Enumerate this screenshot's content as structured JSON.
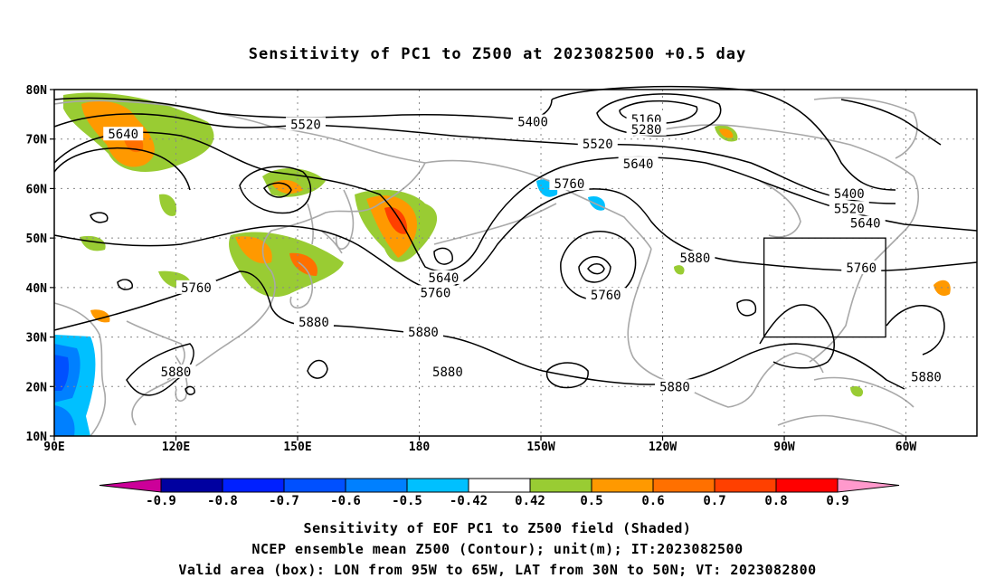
{
  "title": "Sensitivity of PC1 to Z500 at 2023082500 +0.5 day",
  "axes": {
    "lat_ticks": [
      "80N",
      "70N",
      "60N",
      "50N",
      "40N",
      "30N",
      "20N",
      "10N"
    ],
    "lon_ticks": [
      "90E",
      "120E",
      "150E",
      "180",
      "150W",
      "120W",
      "90W",
      "60W"
    ]
  },
  "contour_labels": [
    {
      "text": "5640",
      "lon": 107,
      "lat": 71
    },
    {
      "text": "5520",
      "lon": 152,
      "lat": 73
    },
    {
      "text": "5400",
      "lon": 208,
      "lat": 73.5
    },
    {
      "text": "5160",
      "lon": 236,
      "lat": 74
    },
    {
      "text": "5280",
      "lon": 236,
      "lat": 72
    },
    {
      "text": "5520",
      "lon": 224,
      "lat": 69
    },
    {
      "text": "5640",
      "lon": 234,
      "lat": 65
    },
    {
      "text": "5760",
      "lon": 217,
      "lat": 61
    },
    {
      "text": "5400",
      "lon": 286,
      "lat": 59
    },
    {
      "text": "5520",
      "lon": 286,
      "lat": 56
    },
    {
      "text": "5640",
      "lon": 290,
      "lat": 53
    },
    {
      "text": "5880",
      "lon": 248,
      "lat": 46
    },
    {
      "text": "5760",
      "lon": 289,
      "lat": 44
    },
    {
      "text": "5640",
      "lon": 186,
      "lat": 42
    },
    {
      "text": "5760",
      "lon": 184,
      "lat": 39
    },
    {
      "text": "5760",
      "lon": 125,
      "lat": 40
    },
    {
      "text": "5760",
      "lon": 226,
      "lat": 38.5
    },
    {
      "text": "5880",
      "lon": 154,
      "lat": 33
    },
    {
      "text": "5880",
      "lon": 181,
      "lat": 31
    },
    {
      "text": "5880",
      "lon": 187,
      "lat": 23
    },
    {
      "text": "5880",
      "lon": 120,
      "lat": 23
    },
    {
      "text": "5880",
      "lon": 243,
      "lat": 20
    },
    {
      "text": "5880",
      "lon": 305,
      "lat": 22
    }
  ],
  "valid_box": {
    "lon_min": 265,
    "lon_max": 295,
    "lat_min": 30,
    "lat_max": 50
  },
  "colorbar": {
    "labels": [
      "-0.9",
      "-0.8",
      "-0.7",
      "-0.6",
      "-0.5",
      "-0.42",
      "0.42",
      "0.5",
      "0.6",
      "0.7",
      "0.8",
      "0.9"
    ],
    "colors": [
      "#0000a0",
      "#0020ff",
      "#0050ff",
      "#0080ff",
      "#00c0ff",
      "#ffffff",
      "#99cc33",
      "#ff9900",
      "#ff7000",
      "#ff4000",
      "#ff0000"
    ],
    "low_color": "#cc0099",
    "high_color": "#ff99cc"
  },
  "caption": [
    "Sensitivity of EOF PC1 to Z500 field (Shaded)",
    "NCEP ensemble mean Z500 (Contour); unit(m); IT:2023082500",
    "Valid area (box): LON from 95W to 65W, LAT from 30N to 50N; VT: 2023082800"
  ]
}
